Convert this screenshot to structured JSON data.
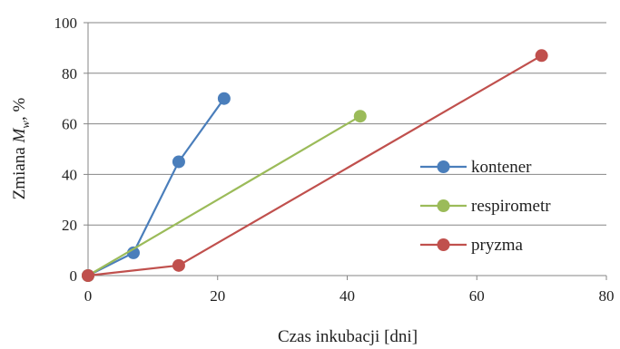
{
  "chart_data": {
    "type": "line",
    "title": "",
    "xlabel": "Czas inkubacji [dni]",
    "ylabel_parts": {
      "prefix": "Zmiana ",
      "symbol": "M",
      "subscript": "w",
      "suffix": ", %"
    },
    "xlim": [
      0,
      80
    ],
    "ylim": [
      0,
      100
    ],
    "xticks": [
      0,
      20,
      40,
      60,
      80
    ],
    "yticks": [
      0,
      20,
      40,
      60,
      80,
      100
    ],
    "grid": "horizontal",
    "legend_position": "right",
    "series": [
      {
        "name": "kontener",
        "color": "#4a7ebb",
        "x": [
          0,
          7,
          14,
          21
        ],
        "y": [
          0,
          9,
          45,
          70
        ]
      },
      {
        "name": "respirometr",
        "color": "#9bbb59",
        "x": [
          0,
          42
        ],
        "y": [
          0,
          63
        ]
      },
      {
        "name": "pryzma",
        "color": "#c0504d",
        "x": [
          0,
          14,
          70
        ],
        "y": [
          0,
          4,
          87
        ]
      }
    ]
  }
}
